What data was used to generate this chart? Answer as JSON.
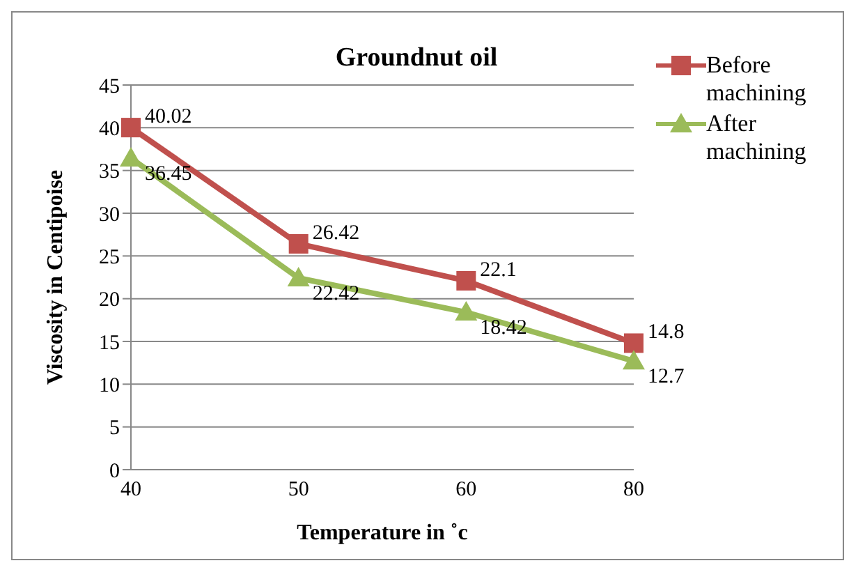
{
  "chart_data": {
    "type": "line",
    "title": "Groundnut oil",
    "xlabel": "Temperature in ˚c",
    "ylabel": "Viscosity in Centipoise",
    "categories": [
      "40",
      "50",
      "60",
      "80"
    ],
    "series": [
      {
        "name": "Before machining",
        "color": "#c0504d",
        "marker": "square",
        "values": [
          40.02,
          26.42,
          22.1,
          14.8
        ]
      },
      {
        "name": "After machining",
        "color": "#9bbb59",
        "marker": "triangle",
        "values": [
          36.45,
          22.42,
          18.42,
          12.7
        ]
      }
    ],
    "ylim": [
      0,
      45
    ],
    "yticks": [
      0,
      5,
      10,
      15,
      20,
      25,
      30,
      35,
      40,
      45
    ],
    "grid": "y",
    "legend": "top right",
    "data_labels": true
  }
}
